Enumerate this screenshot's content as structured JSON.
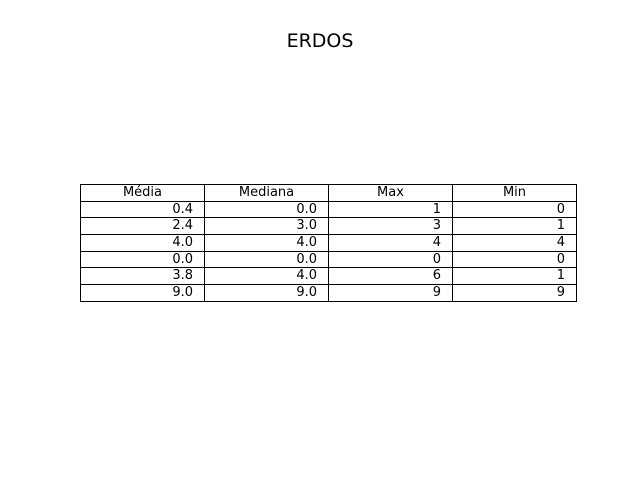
{
  "chart_data": {
    "type": "table",
    "title": "ERDOS",
    "columns": [
      "Média",
      "Mediana",
      "Max",
      "Min"
    ],
    "rows": [
      [
        "0.4",
        "0.0",
        "1",
        "0"
      ],
      [
        "2.4",
        "3.0",
        "3",
        "1"
      ],
      [
        "4.0",
        "4.0",
        "4",
        "4"
      ],
      [
        "0.0",
        "0.0",
        "0",
        "0"
      ],
      [
        "3.8",
        "4.0",
        "6",
        "1"
      ],
      [
        "9.0",
        "9.0",
        "9",
        "9"
      ]
    ]
  }
}
